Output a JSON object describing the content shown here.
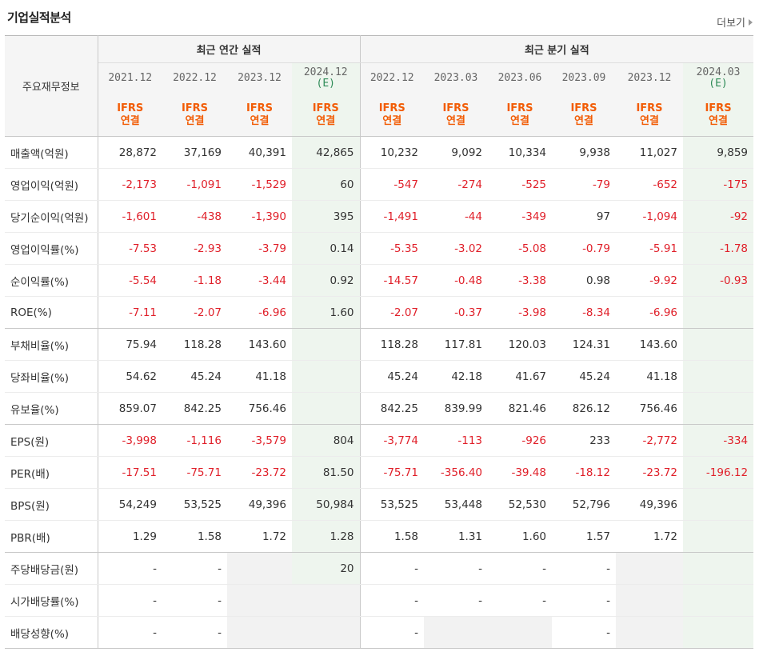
{
  "header": {
    "title": "기업실적분석",
    "more_label": "더보기"
  },
  "table": {
    "row_header_label": "주요재무정보",
    "groups": {
      "annual": "최근 연간 실적",
      "quarterly": "최근 분기 실적"
    },
    "periods": [
      {
        "label": "2021.12",
        "est": ""
      },
      {
        "label": "2022.12",
        "est": ""
      },
      {
        "label": "2023.12",
        "est": ""
      },
      {
        "label": "2024.12",
        "est": "(E)"
      },
      {
        "label": "2022.12",
        "est": ""
      },
      {
        "label": "2023.03",
        "est": ""
      },
      {
        "label": "2023.06",
        "est": ""
      },
      {
        "label": "2023.09",
        "est": ""
      },
      {
        "label": "2023.12",
        "est": ""
      },
      {
        "label": "2024.03",
        "est": "(E)"
      }
    ],
    "standard": {
      "line1": "IFRS",
      "line2": "연결"
    },
    "rows": [
      {
        "label": "매출액(억원)",
        "values": [
          "28,872",
          "37,169",
          "40,391",
          "42,865",
          "10,232",
          "9,092",
          "10,334",
          "9,938",
          "11,027",
          "9,859"
        ]
      },
      {
        "label": "영업이익(억원)",
        "values": [
          "-2,173",
          "-1,091",
          "-1,529",
          "60",
          "-547",
          "-274",
          "-525",
          "-79",
          "-652",
          "-175"
        ]
      },
      {
        "label": "당기순이익(억원)",
        "values": [
          "-1,601",
          "-438",
          "-1,390",
          "395",
          "-1,491",
          "-44",
          "-349",
          "97",
          "-1,094",
          "-92"
        ]
      },
      {
        "label": "영업이익률(%)",
        "values": [
          "-7.53",
          "-2.93",
          "-3.79",
          "0.14",
          "-5.35",
          "-3.02",
          "-5.08",
          "-0.79",
          "-5.91",
          "-1.78"
        ]
      },
      {
        "label": "순이익률(%)",
        "values": [
          "-5.54",
          "-1.18",
          "-3.44",
          "0.92",
          "-14.57",
          "-0.48",
          "-3.38",
          "0.98",
          "-9.92",
          "-0.93"
        ]
      },
      {
        "label": "ROE(%)",
        "values": [
          "-7.11",
          "-2.07",
          "-6.96",
          "1.60",
          "-2.07",
          "-0.37",
          "-3.98",
          "-8.34",
          "-6.96",
          ""
        ]
      },
      {
        "label": "부채비율(%)",
        "values": [
          "75.94",
          "118.28",
          "143.60",
          "",
          "118.28",
          "117.81",
          "120.03",
          "124.31",
          "143.60",
          ""
        ]
      },
      {
        "label": "당좌비율(%)",
        "values": [
          "54.62",
          "45.24",
          "41.18",
          "",
          "45.24",
          "42.18",
          "41.67",
          "45.24",
          "41.18",
          ""
        ]
      },
      {
        "label": "유보율(%)",
        "values": [
          "859.07",
          "842.25",
          "756.46",
          "",
          "842.25",
          "839.99",
          "821.46",
          "826.12",
          "756.46",
          ""
        ]
      },
      {
        "label": "EPS(원)",
        "values": [
          "-3,998",
          "-1,116",
          "-3,579",
          "804",
          "-3,774",
          "-113",
          "-926",
          "233",
          "-2,772",
          "-334"
        ]
      },
      {
        "label": "PER(배)",
        "values": [
          "-17.51",
          "-75.71",
          "-23.72",
          "81.50",
          "-75.71",
          "-356.40",
          "-39.48",
          "-18.12",
          "-23.72",
          "-196.12"
        ]
      },
      {
        "label": "BPS(원)",
        "values": [
          "54,249",
          "53,525",
          "49,396",
          "50,984",
          "53,525",
          "53,448",
          "52,530",
          "52,796",
          "49,396",
          ""
        ]
      },
      {
        "label": "PBR(배)",
        "values": [
          "1.29",
          "1.58",
          "1.72",
          "1.28",
          "1.58",
          "1.31",
          "1.60",
          "1.57",
          "1.72",
          ""
        ]
      },
      {
        "label": "주당배당금(원)",
        "values": [
          "-",
          "-",
          "",
          "20",
          "-",
          "-",
          "-",
          "-",
          "",
          ""
        ]
      },
      {
        "label": "시가배당률(%)",
        "values": [
          "-",
          "-",
          "",
          "",
          "-",
          "-",
          "-",
          "-",
          "",
          ""
        ]
      },
      {
        "label": "배당성향(%)",
        "values": [
          "-",
          "-",
          "",
          "",
          "-",
          "",
          "",
          "-",
          "",
          ""
        ]
      }
    ]
  },
  "colors": {
    "negative": "#e0202a",
    "ifrs": "#f25c05",
    "estimate_label": "#2e8b57",
    "estimate_column": "#eef5ee",
    "header_bg": "#f5f5f5"
  }
}
